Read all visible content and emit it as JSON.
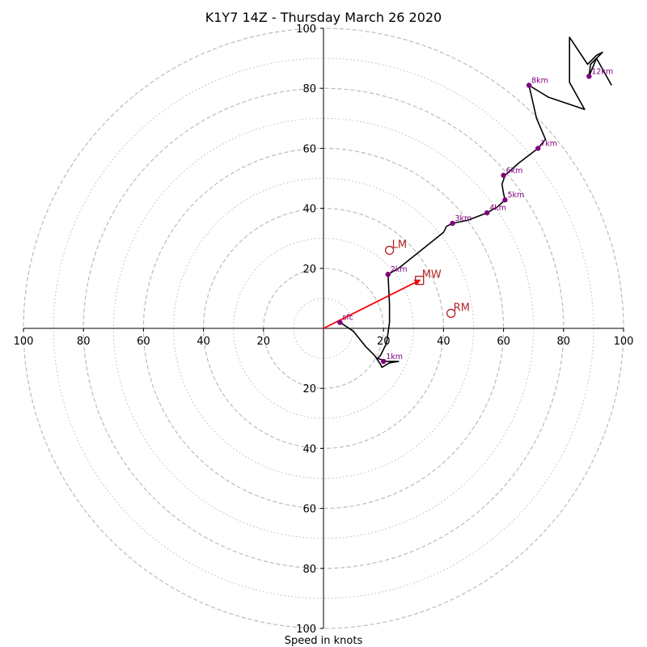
{
  "chart_data": {
    "type": "line",
    "title": "K1Y7 14Z - Thursday March 26 2020",
    "xlabel": "Speed in knots",
    "ylabel": "",
    "axis_range": [
      -100,
      100
    ],
    "tick_values": [
      20,
      40,
      60,
      80,
      100
    ],
    "tick_labels": [
      "20",
      "40",
      "60",
      "80",
      "100"
    ],
    "ring_dashed": [
      20,
      40,
      60,
      80,
      100
    ],
    "ring_dotted": [
      10,
      30,
      50,
      70,
      90
    ],
    "grid_color": "#bbbbbb",
    "trace_color": "#000000",
    "height_marker_color": "#800080",
    "motion_color": "#b22222",
    "hodograph": [
      [
        5.5,
        2
      ],
      [
        10,
        -1
      ],
      [
        14,
        -6
      ],
      [
        17,
        -9
      ],
      [
        19,
        -12
      ],
      [
        19.5,
        -13
      ],
      [
        22,
        -11.5
      ],
      [
        25,
        -11
      ],
      [
        21,
        -11
      ],
      [
        18,
        -10
      ],
      [
        19,
        -9
      ],
      [
        21,
        -5
      ],
      [
        22,
        2
      ],
      [
        22,
        8
      ],
      [
        21.5,
        18
      ],
      [
        25,
        20
      ],
      [
        30,
        24
      ],
      [
        35,
        28
      ],
      [
        40,
        32
      ],
      [
        41,
        34
      ],
      [
        43,
        35
      ],
      [
        48,
        36
      ],
      [
        54.5,
        38.5
      ],
      [
        58,
        40.5
      ],
      [
        60.5,
        42.8
      ],
      [
        60,
        45
      ],
      [
        59.5,
        48
      ],
      [
        60.5,
        51
      ],
      [
        65,
        55
      ],
      [
        71.5,
        60
      ],
      [
        74,
        63
      ],
      [
        71,
        70
      ],
      [
        68.5,
        81
      ],
      [
        75,
        77
      ],
      [
        87,
        73
      ],
      [
        82,
        82
      ],
      [
        82,
        97
      ],
      [
        88,
        88
      ],
      [
        91,
        91
      ],
      [
        93,
        92
      ],
      [
        89,
        88
      ],
      [
        88.5,
        84
      ],
      [
        91,
        90
      ],
      [
        96,
        81
      ]
    ],
    "height_markers": [
      {
        "label": "sfc",
        "u": 5.5,
        "v": 2
      },
      {
        "label": "1km",
        "u": 20,
        "v": -11
      },
      {
        "label": "2km",
        "u": 21.5,
        "v": 18
      },
      {
        "label": "3km",
        "u": 43,
        "v": 35
      },
      {
        "label": "4km",
        "u": 54.5,
        "v": 38.5
      },
      {
        "label": "5km",
        "u": 60.5,
        "v": 42.8
      },
      {
        "label": "6km",
        "u": 60,
        "v": 51
      },
      {
        "label": "7km",
        "u": 71.5,
        "v": 60
      },
      {
        "label": "8km",
        "u": 68.5,
        "v": 81
      },
      {
        "label": "12km",
        "u": 88.5,
        "v": 84
      }
    ],
    "storm_motion": [
      {
        "label": "LM",
        "u": 22,
        "v": 26,
        "marker": "circle"
      },
      {
        "label": "MW",
        "u": 32,
        "v": 16,
        "marker": "square"
      },
      {
        "label": "RM",
        "u": 42.5,
        "v": 5,
        "marker": "circle"
      }
    ],
    "shear_vector": {
      "from": [
        0,
        0
      ],
      "to": [
        32,
        16
      ]
    }
  }
}
